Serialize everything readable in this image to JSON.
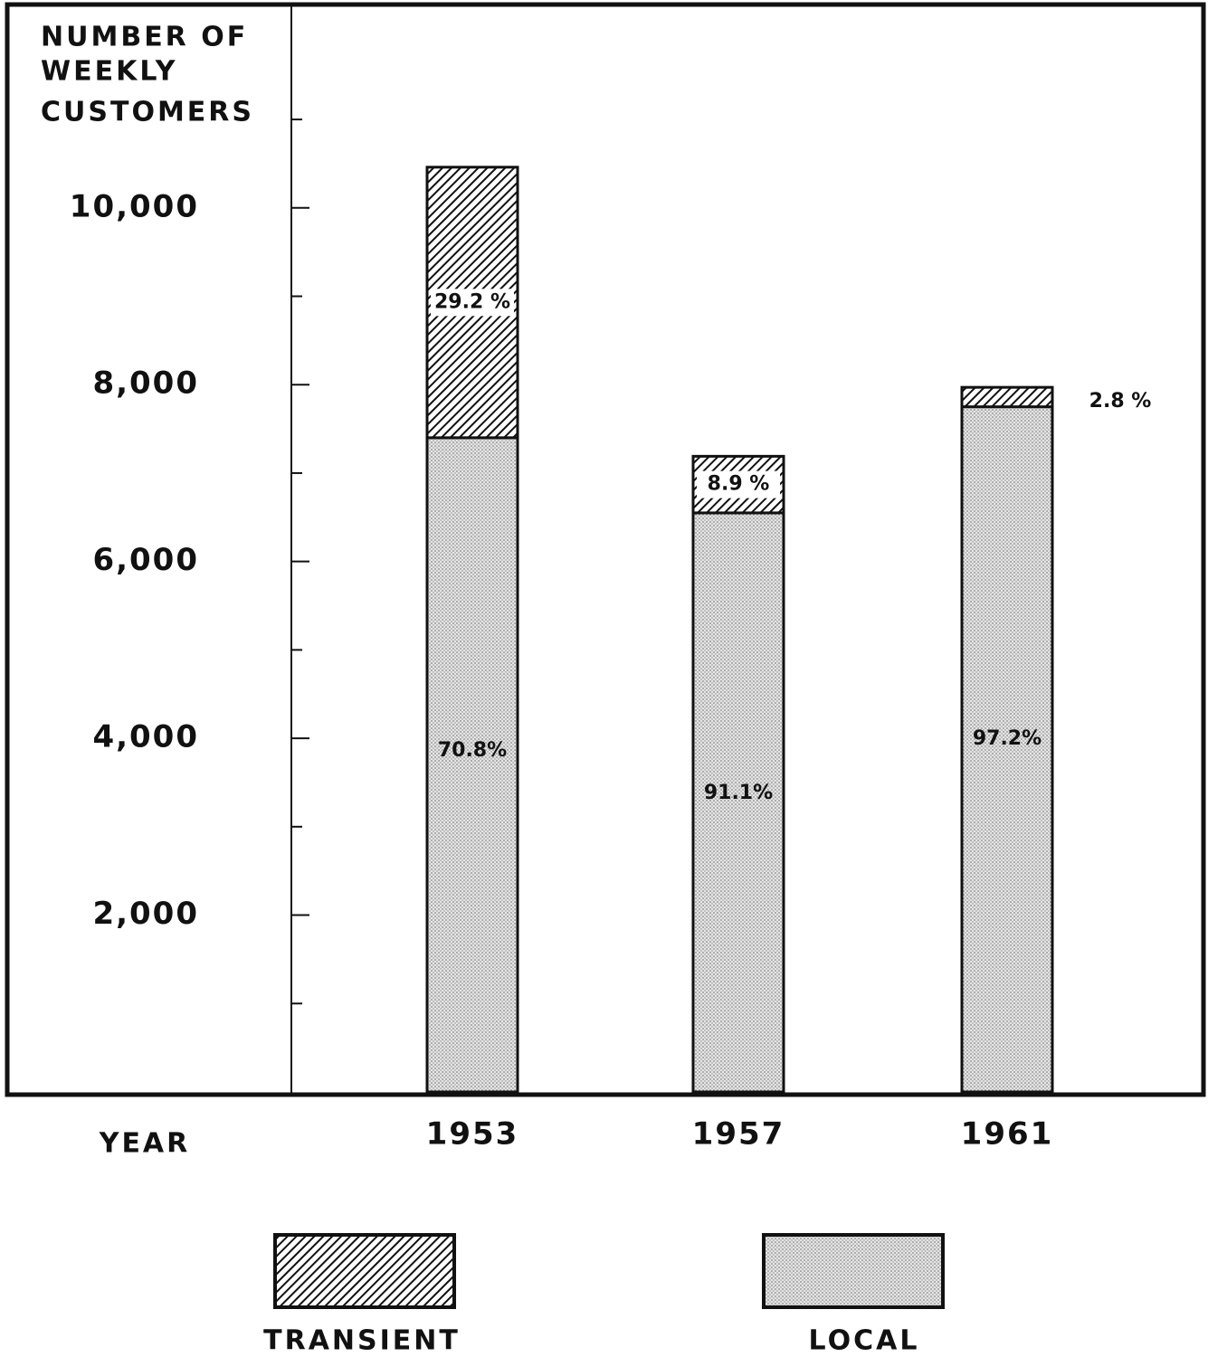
{
  "chart_data": {
    "type": "stacked_bar",
    "y_label_lines": [
      "NUMBER OF",
      "WEEKLY",
      "CUSTOMERS"
    ],
    "x_label": "YEAR",
    "categories": [
      "1953",
      "1957",
      "1961"
    ],
    "series": [
      {
        "name": "LOCAL",
        "color": "#888888",
        "pattern": "dots",
        "values": [
          7400,
          6550,
          7750
        ],
        "value_labels": [
          "70.8%",
          "91.1%",
          "97.2%"
        ]
      },
      {
        "name": "TRANSIENT",
        "color": "#111111",
        "pattern": "hatch",
        "values": [
          3060,
          640,
          220
        ],
        "value_labels": [
          "29.2 %",
          "8.9 %",
          "2.8 %"
        ]
      }
    ],
    "ylim": [
      0,
      12300
    ],
    "yticks": [
      {
        "value": 2000,
        "label": "2,000"
      },
      {
        "value": 4000,
        "label": "4,000"
      },
      {
        "value": 6000,
        "label": "6,000"
      },
      {
        "value": 8000,
        "label": "8,000"
      },
      {
        "value": 10000,
        "label": "10,000"
      }
    ],
    "minor_yticks": [
      1000,
      3000,
      5000,
      7000,
      9000,
      11000
    ]
  }
}
